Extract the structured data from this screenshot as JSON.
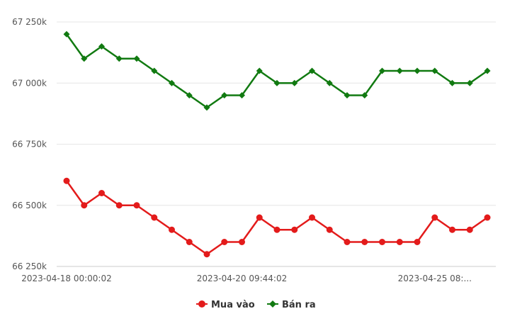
{
  "chart_data": {
    "type": "line",
    "title": "",
    "xlabel": "",
    "ylabel": "",
    "ylim": [
      66250,
      67250
    ],
    "y_ticks": [
      {
        "value": 67250,
        "label": "67 250k"
      },
      {
        "value": 67000,
        "label": "67 000k"
      },
      {
        "value": 66750,
        "label": "66 750k"
      },
      {
        "value": 66500,
        "label": "66 500k"
      },
      {
        "value": 66250,
        "label": "66 250k"
      }
    ],
    "x_tick_labels": [
      {
        "index": 0,
        "label": "2023-04-18 00:00:02"
      },
      {
        "index": 10,
        "label": "2023-04-20 09:44:02"
      },
      {
        "index": 21,
        "label": "2023-04-25 08:..."
      }
    ],
    "grid": true,
    "legend_position": "bottom-center",
    "series": [
      {
        "name": "Mua vào",
        "color": "#e31b1b",
        "marker": "circle",
        "values": [
          66600,
          66500,
          66550,
          66500,
          66500,
          66450,
          66400,
          66350,
          66300,
          66350,
          66350,
          66450,
          66400,
          66400,
          66450,
          66400,
          66350,
          66350,
          66350,
          66350,
          66350,
          66450,
          66400,
          66400,
          66450
        ]
      },
      {
        "name": "Bán ra",
        "color": "#117a11",
        "marker": "diamond",
        "values": [
          67200,
          67100,
          67150,
          67100,
          67100,
          67050,
          67000,
          66950,
          66900,
          66950,
          66950,
          67050,
          67000,
          67000,
          67050,
          67000,
          66950,
          66950,
          67050,
          67050,
          67050,
          67050,
          67000,
          67000,
          67050
        ]
      }
    ]
  }
}
